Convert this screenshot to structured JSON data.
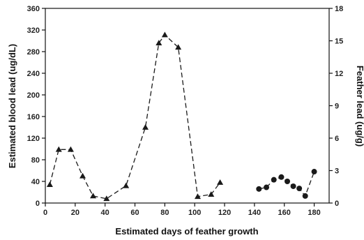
{
  "chart_data": {
    "type": "line",
    "title": "",
    "xlabel": "Estimated days of feather growth",
    "ylabel": "Estimated blood lead (ug/dL)",
    "y2label": "Feather lead (ug/g)",
    "xlim": [
      0,
      190
    ],
    "ylim": [
      0,
      360
    ],
    "y2lim": [
      0,
      18
    ],
    "x_ticks": [
      0,
      20,
      40,
      60,
      80,
      100,
      120,
      140,
      160,
      180
    ],
    "y_ticks": [
      0,
      40,
      80,
      120,
      160,
      200,
      240,
      280,
      320,
      360
    ],
    "y2_ticks": [
      0,
      3,
      6,
      9,
      12,
      15,
      18
    ],
    "grid": false,
    "series": [
      {
        "marker": "triangle",
        "line": "dashed",
        "axis": "left",
        "x": [
          3,
          9,
          17,
          25,
          32,
          41,
          54,
          67,
          76,
          80,
          89,
          102,
          111,
          117
        ],
        "y": [
          34,
          99,
          99,
          50,
          13,
          8,
          32,
          140,
          296,
          311,
          288,
          12,
          16,
          38
        ]
      },
      {
        "marker": "circle",
        "line": "dashed",
        "axis": "left",
        "x": [
          143,
          148,
          153,
          158,
          162,
          166,
          170,
          174,
          180
        ],
        "y": [
          26,
          29,
          43,
          48,
          40,
          31,
          27,
          13,
          58
        ]
      }
    ],
    "colors": {
      "axis": "#111111",
      "series": "#1a1a1a"
    }
  }
}
